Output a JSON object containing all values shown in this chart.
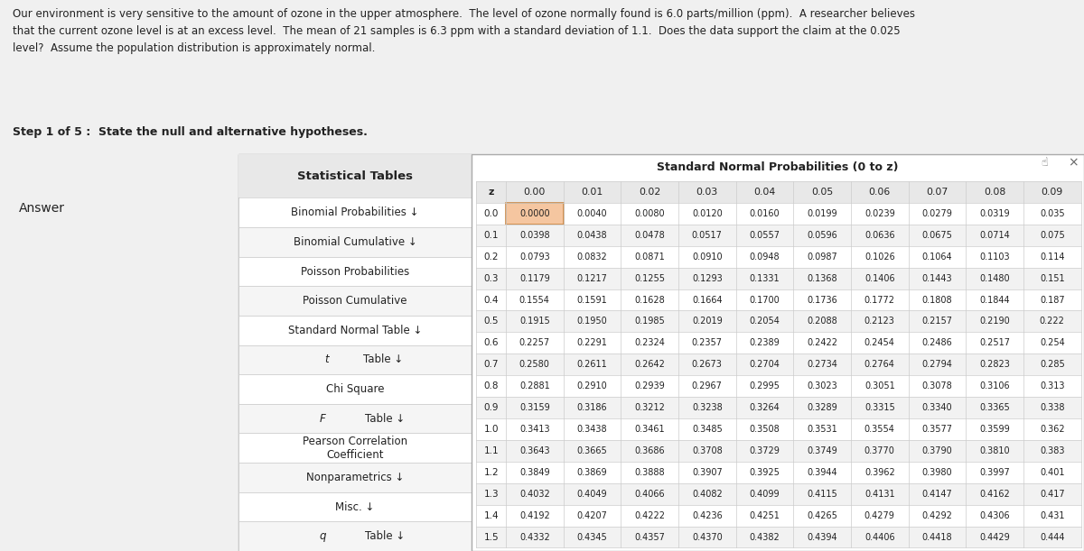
{
  "header_text": "Our environment is very sensitive to the amount of ozone in the upper atmosphere.  The level of ozone normally found is 6.0 parts/million (ppm).  A researcher believes\nthat the current ozone level is at an excess level.  The mean of 21 samples is 6.3 ppm with a standard deviation of 1.1.  Does the data support the claim at the 0.025\nlevel?  Assume the population distribution is approximately normal.",
  "step_text": "Step 1 of 5 :  State the null and alternative hypotheses.",
  "answer_text": "Answer",
  "stat_tables_title": "Statistical Tables",
  "left_menu": [
    "Binomial Probabilities ↓",
    "Binomial Cumulative ↓",
    "Poisson Probabilities",
    "Poisson Cumulative",
    "Standard Normal Table ↓",
    "t Table ↓",
    "Chi Square",
    "F Table ↓",
    "Pearson Correlation\nCoefficient",
    "Nonparametrics ↓",
    "Misc. ↓",
    "q Table ↓"
  ],
  "table_title": "Standard Normal Probabilities (0 to z)",
  "col_headers": [
    "z",
    "0.00",
    "0.01",
    "0.02",
    "0.03",
    "0.04",
    "0.05",
    "0.06",
    "0.07",
    "0.08",
    "0.09"
  ],
  "row_labels": [
    "0.0",
    "0.1",
    "0.2",
    "0.3",
    "0.4",
    "0.5",
    "0.6",
    "0.7",
    "0.8",
    "0.9",
    "1.0",
    "1.1",
    "1.2",
    "1.3",
    "1.4",
    "1.5"
  ],
  "table_data": [
    [
      "0.0000",
      "0.0040",
      "0.0080",
      "0.0120",
      "0.0160",
      "0.0199",
      "0.0239",
      "0.0279",
      "0.0319",
      "0.035"
    ],
    [
      "0.0398",
      "0.0438",
      "0.0478",
      "0.0517",
      "0.0557",
      "0.0596",
      "0.0636",
      "0.0675",
      "0.0714",
      "0.075"
    ],
    [
      "0.0793",
      "0.0832",
      "0.0871",
      "0.0910",
      "0.0948",
      "0.0987",
      "0.1026",
      "0.1064",
      "0.1103",
      "0.114"
    ],
    [
      "0.1179",
      "0.1217",
      "0.1255",
      "0.1293",
      "0.1331",
      "0.1368",
      "0.1406",
      "0.1443",
      "0.1480",
      "0.151"
    ],
    [
      "0.1554",
      "0.1591",
      "0.1628",
      "0.1664",
      "0.1700",
      "0.1736",
      "0.1772",
      "0.1808",
      "0.1844",
      "0.187"
    ],
    [
      "0.1915",
      "0.1950",
      "0.1985",
      "0.2019",
      "0.2054",
      "0.2088",
      "0.2123",
      "0.2157",
      "0.2190",
      "0.222"
    ],
    [
      "0.2257",
      "0.2291",
      "0.2324",
      "0.2357",
      "0.2389",
      "0.2422",
      "0.2454",
      "0.2486",
      "0.2517",
      "0.254"
    ],
    [
      "0.2580",
      "0.2611",
      "0.2642",
      "0.2673",
      "0.2704",
      "0.2734",
      "0.2764",
      "0.2794",
      "0.2823",
      "0.285"
    ],
    [
      "0.2881",
      "0.2910",
      "0.2939",
      "0.2967",
      "0.2995",
      "0.3023",
      "0.3051",
      "0.3078",
      "0.3106",
      "0.313"
    ],
    [
      "0.3159",
      "0.3186",
      "0.3212",
      "0.3238",
      "0.3264",
      "0.3289",
      "0.3315",
      "0.3340",
      "0.3365",
      "0.338"
    ],
    [
      "0.3413",
      "0.3438",
      "0.3461",
      "0.3485",
      "0.3508",
      "0.3531",
      "0.3554",
      "0.3577",
      "0.3599",
      "0.362"
    ],
    [
      "0.3643",
      "0.3665",
      "0.3686",
      "0.3708",
      "0.3729",
      "0.3749",
      "0.3770",
      "0.3790",
      "0.3810",
      "0.383"
    ],
    [
      "0.3849",
      "0.3869",
      "0.3888",
      "0.3907",
      "0.3925",
      "0.3944",
      "0.3962",
      "0.3980",
      "0.3997",
      "0.401"
    ],
    [
      "0.4032",
      "0.4049",
      "0.4066",
      "0.4082",
      "0.4099",
      "0.4115",
      "0.4131",
      "0.4147",
      "0.4162",
      "0.417"
    ],
    [
      "0.4192",
      "0.4207",
      "0.4222",
      "0.4236",
      "0.4251",
      "0.4265",
      "0.4279",
      "0.4292",
      "0.4306",
      "0.431"
    ],
    [
      "0.4332",
      "0.4345",
      "0.4357",
      "0.4370",
      "0.4382",
      "0.4394",
      "0.4406",
      "0.4418",
      "0.4429",
      "0.444"
    ]
  ],
  "bg_color": "#f0f0f0",
  "white": "#ffffff",
  "light_gray": "#e8e8e8",
  "dark_gray": "#d0d0d0",
  "text_color": "#222222",
  "highlight_cell_color": "#f5c6a0",
  "header_bg": "#e0e0e0",
  "table_header_bg": "#e8e8e8"
}
